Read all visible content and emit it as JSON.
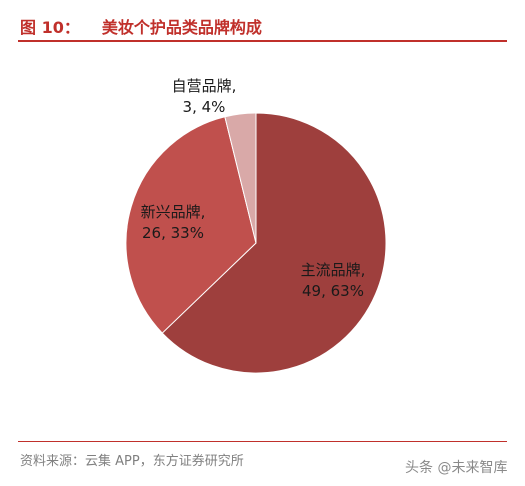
{
  "header": {
    "figure_no": "图 10：",
    "title": "美妆个护品类品牌构成"
  },
  "footer": {
    "source": "资料来源：云集 APP，东方证券研究所",
    "watermark": "头条 @未来智库"
  },
  "chart_data": {
    "type": "pie",
    "title": "美妆个护品类品牌构成",
    "legend": "none",
    "slices": [
      {
        "name": "主流品牌",
        "value": 49,
        "percent": 63,
        "color": "#9e3f3d",
        "label": "49, 63%"
      },
      {
        "name": "新兴品牌",
        "value": 26,
        "percent": 33,
        "color": "#c0504d",
        "label": "26, 33%"
      },
      {
        "name": "自营品牌",
        "value": 3,
        "percent": 4,
        "color": "#d9a9a8",
        "label": "3, 4%"
      }
    ]
  }
}
